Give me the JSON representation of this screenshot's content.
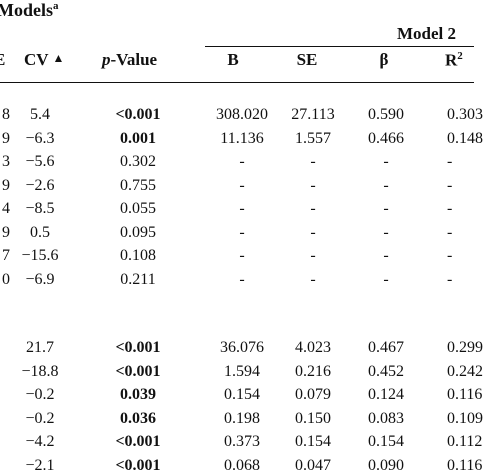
{
  "title": {
    "text": "Models",
    "footnote": "a"
  },
  "group_header": {
    "text": "Model 2"
  },
  "headers": {
    "e_partial": "E",
    "cv": "CV",
    "cv_marker": "▲",
    "p_prefix": "p",
    "p_suffix": "-Value",
    "b": "B",
    "se": "SE",
    "beta": "β",
    "r2_base": "R",
    "r2_sup": "2"
  },
  "rows_top": [
    {
      "lead": "8",
      "cv": "5.4",
      "p": "<0.001",
      "p_bold": true,
      "b": "308.020",
      "se": "27.113",
      "beta": "0.590",
      "r2": "0.303"
    },
    {
      "lead": "9",
      "cv": "−6.3",
      "p": "0.001",
      "p_bold": true,
      "b": "11.136",
      "se": "1.557",
      "beta": "0.466",
      "r2": "0.148"
    },
    {
      "lead": "3",
      "cv": "−5.6",
      "p": "0.302",
      "p_bold": false,
      "b": "-",
      "se": "-",
      "beta": "-",
      "r2": "-"
    },
    {
      "lead": "9",
      "cv": "−2.6",
      "p": "0.755",
      "p_bold": false,
      "b": "-",
      "se": "-",
      "beta": "-",
      "r2": "-"
    },
    {
      "lead": "4",
      "cv": "−8.5",
      "p": "0.055",
      "p_bold": false,
      "b": "-",
      "se": "-",
      "beta": "-",
      "r2": "-"
    },
    {
      "lead": "9",
      "cv": "0.5",
      "p": "0.095",
      "p_bold": false,
      "b": "-",
      "se": "-",
      "beta": "-",
      "r2": "-"
    },
    {
      "lead": "7",
      "cv": "−15.6",
      "p": "0.108",
      "p_bold": false,
      "b": "-",
      "se": "-",
      "beta": "-",
      "r2": "-"
    },
    {
      "lead": "0",
      "cv": "−6.9",
      "p": "0.211",
      "p_bold": false,
      "b": "-",
      "se": "-",
      "beta": "-",
      "r2": "-"
    }
  ],
  "rows_bottom": [
    {
      "lead": "",
      "cv": "21.7",
      "p": "<0.001",
      "p_bold": true,
      "b": "36.076",
      "se": "4.023",
      "beta": "0.467",
      "r2": "0.299"
    },
    {
      "lead": "",
      "cv": "−18.8",
      "p": "<0.001",
      "p_bold": true,
      "b": "1.594",
      "se": "0.216",
      "beta": "0.452",
      "r2": "0.242"
    },
    {
      "lead": "",
      "cv": "−0.2",
      "p": "0.039",
      "p_bold": true,
      "b": "0.154",
      "se": "0.079",
      "beta": "0.124",
      "r2": "0.116"
    },
    {
      "lead": "",
      "cv": "−0.2",
      "p": "0.036",
      "p_bold": true,
      "b": "0.198",
      "se": "0.150",
      "beta": "0.083",
      "r2": "0.109"
    },
    {
      "lead": "",
      "cv": "−4.2",
      "p": "<0.001",
      "p_bold": true,
      "b": "0.373",
      "se": "0.154",
      "beta": "0.154",
      "r2": "0.112"
    },
    {
      "lead": "",
      "cv": "−2.1",
      "p": "<0.001",
      "p_bold": true,
      "b": "0.068",
      "se": "0.047",
      "beta": "0.090",
      "r2": "0.116"
    }
  ]
}
